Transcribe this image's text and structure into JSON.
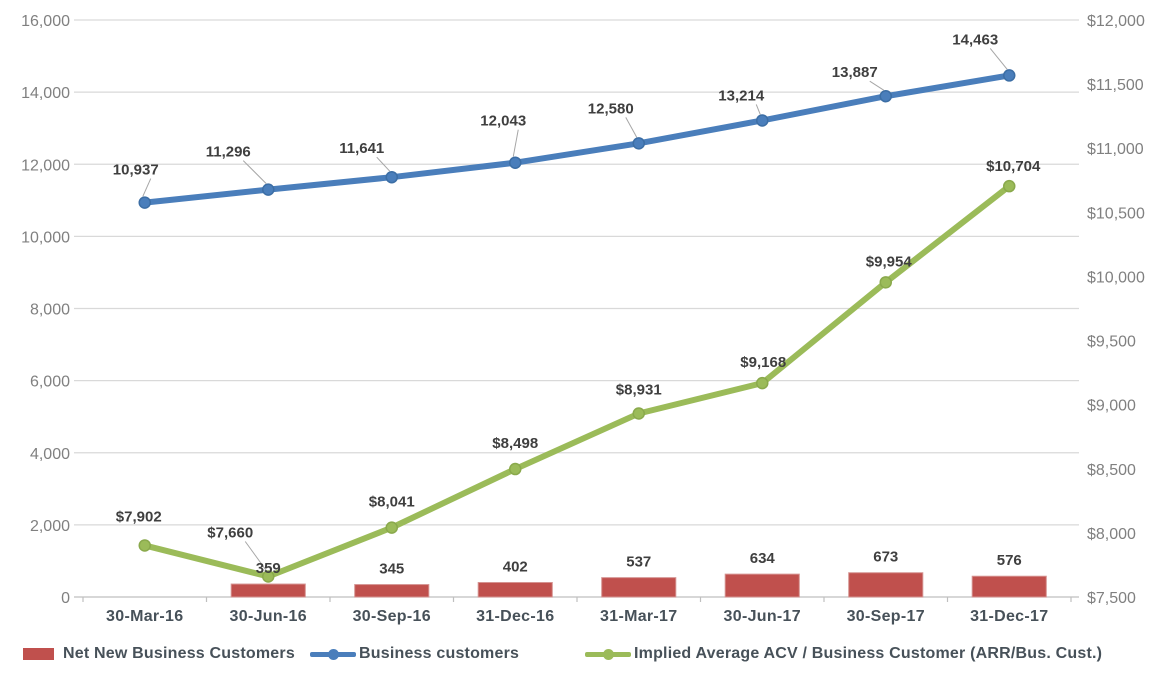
{
  "chart_data": {
    "type": "combo-bar-line",
    "title": "",
    "categories": [
      "30-Mar-16",
      "30-Jun-16",
      "30-Sep-16",
      "31-Dec-16",
      "31-Mar-17",
      "30-Jun-17",
      "30-Sep-17",
      "31-Dec-17"
    ],
    "series": [
      {
        "name": "Net New Business Customers",
        "type": "bar",
        "axis": "left",
        "color": "#C0504D",
        "border_color": "#D59391",
        "values": [
          null,
          359,
          345,
          402,
          537,
          634,
          673,
          576
        ],
        "labels": [
          "",
          "359",
          "345",
          "402",
          "537",
          "634",
          "673",
          "576"
        ]
      },
      {
        "name": "Business customers",
        "type": "line",
        "axis": "left",
        "color": "#4A7EBB",
        "marker_stroke": "#3C6EA5",
        "values": [
          10937,
          11296,
          11641,
          12043,
          12580,
          13214,
          13887,
          14463
        ],
        "labels": [
          "10,937",
          "11,296",
          "11,641",
          "12,043",
          "12,580",
          "13,214",
          "13,887",
          "14,463"
        ]
      },
      {
        "name": "Implied Average ACV / Business Customer (ARR/Bus. Cust.)",
        "type": "line",
        "axis": "right",
        "color": "#9BBB59",
        "marker_stroke": "#8AA94C",
        "values": [
          7902,
          7660,
          8041,
          8498,
          8931,
          9168,
          9954,
          10704
        ],
        "labels": [
          "$7,902",
          "$7,660",
          "$8,041",
          "$8,498",
          "$8,931",
          "$9,168",
          "$9,954",
          "$10,704"
        ]
      }
    ],
    "left_axis": {
      "min": 0,
      "max": 16000,
      "step": 2000,
      "ticks": [
        "0",
        "2,000",
        "4,000",
        "6,000",
        "8,000",
        "10,000",
        "12,000",
        "14,000",
        "16,000"
      ]
    },
    "right_axis": {
      "min": 7500,
      "max": 12000,
      "step": 500,
      "ticks": [
        "$7,500",
        "$8,000",
        "$8,500",
        "$9,000",
        "$9,500",
        "$10,000",
        "$10,500",
        "$11,000",
        "$11,500",
        "$12,000"
      ]
    },
    "grid": "horizontal-left-axis",
    "legend_position": "bottom",
    "colors": {
      "gridline": "#D9D9D9",
      "axis_line": "#BFBFBF",
      "tick_text": "#808080",
      "category_text": "#475159",
      "data_label_text": "#3F3F3F",
      "leader_line": "#A6A6A6",
      "background": "#FFFFFF"
    }
  }
}
